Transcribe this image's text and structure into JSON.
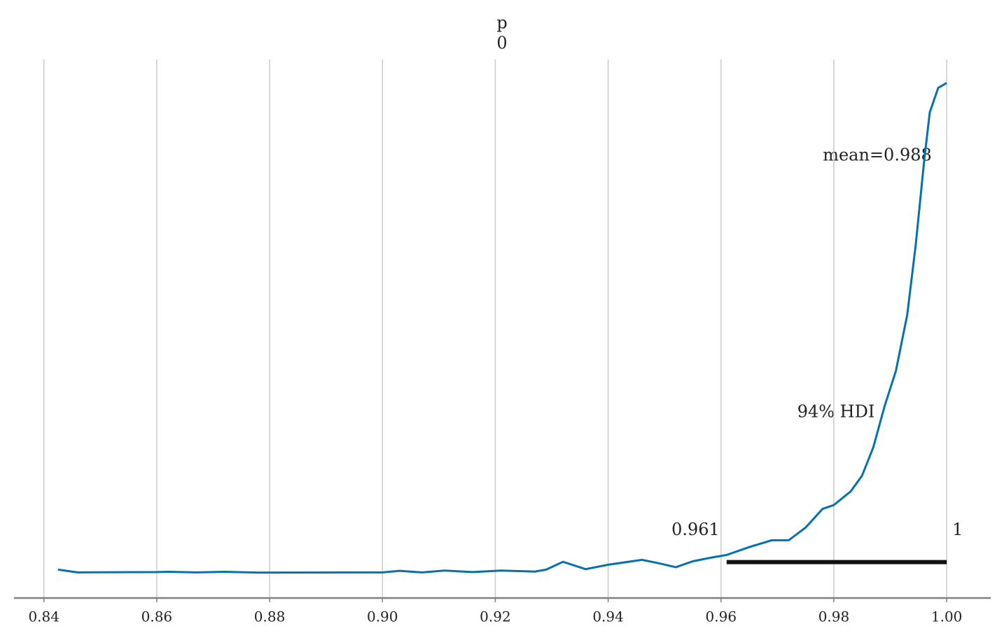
{
  "chart_data": {
    "type": "line",
    "title": "p",
    "subtitle": "0",
    "x": [
      0.8425,
      0.846,
      0.86,
      0.862,
      0.867,
      0.872,
      0.878,
      0.9,
      0.903,
      0.907,
      0.911,
      0.916,
      0.921,
      0.927,
      0.929,
      0.932,
      0.936,
      0.94,
      0.946,
      0.949,
      0.952,
      0.955,
      0.958,
      0.961,
      0.965,
      0.969,
      0.972,
      0.975,
      0.978,
      0.98,
      0.983,
      0.985,
      0.987,
      0.989,
      0.991,
      0.993,
      0.9945,
      0.996,
      0.997,
      0.9985,
      1.0
    ],
    "values": [
      0.3,
      0.02,
      0.05,
      0.08,
      0.02,
      0.08,
      0.0,
      0.02,
      0.18,
      0.02,
      0.2,
      0.05,
      0.2,
      0.1,
      0.3,
      1.1,
      0.35,
      0.8,
      1.3,
      0.95,
      0.55,
      1.15,
      1.5,
      1.8,
      2.6,
      3.3,
      3.3,
      4.6,
      6.5,
      6.9,
      8.3,
      9.9,
      12.8,
      17.0,
      20.6,
      26.3,
      33.4,
      42.0,
      47.0,
      49.5,
      50.0
    ],
    "color": "#0771b0",
    "xlim": [
      0.8347,
      1.0078
    ],
    "ylim": [
      -2.6,
      52.4
    ],
    "xticks": [
      {
        "value": 0.84,
        "label": "0.84"
      },
      {
        "value": 0.86,
        "label": "0.86"
      },
      {
        "value": 0.88,
        "label": "0.88"
      },
      {
        "value": 0.9,
        "label": "0.90"
      },
      {
        "value": 0.92,
        "label": "0.92"
      },
      {
        "value": 0.94,
        "label": "0.94"
      },
      {
        "value": 0.96,
        "label": "0.96"
      },
      {
        "value": 0.98,
        "label": "0.98"
      },
      {
        "value": 1.0,
        "label": "1.00"
      }
    ],
    "grid": true,
    "mean_label": "mean=0.988",
    "hdi_label": "94% HDI",
    "hdi": [
      0.961,
      1
    ]
  }
}
